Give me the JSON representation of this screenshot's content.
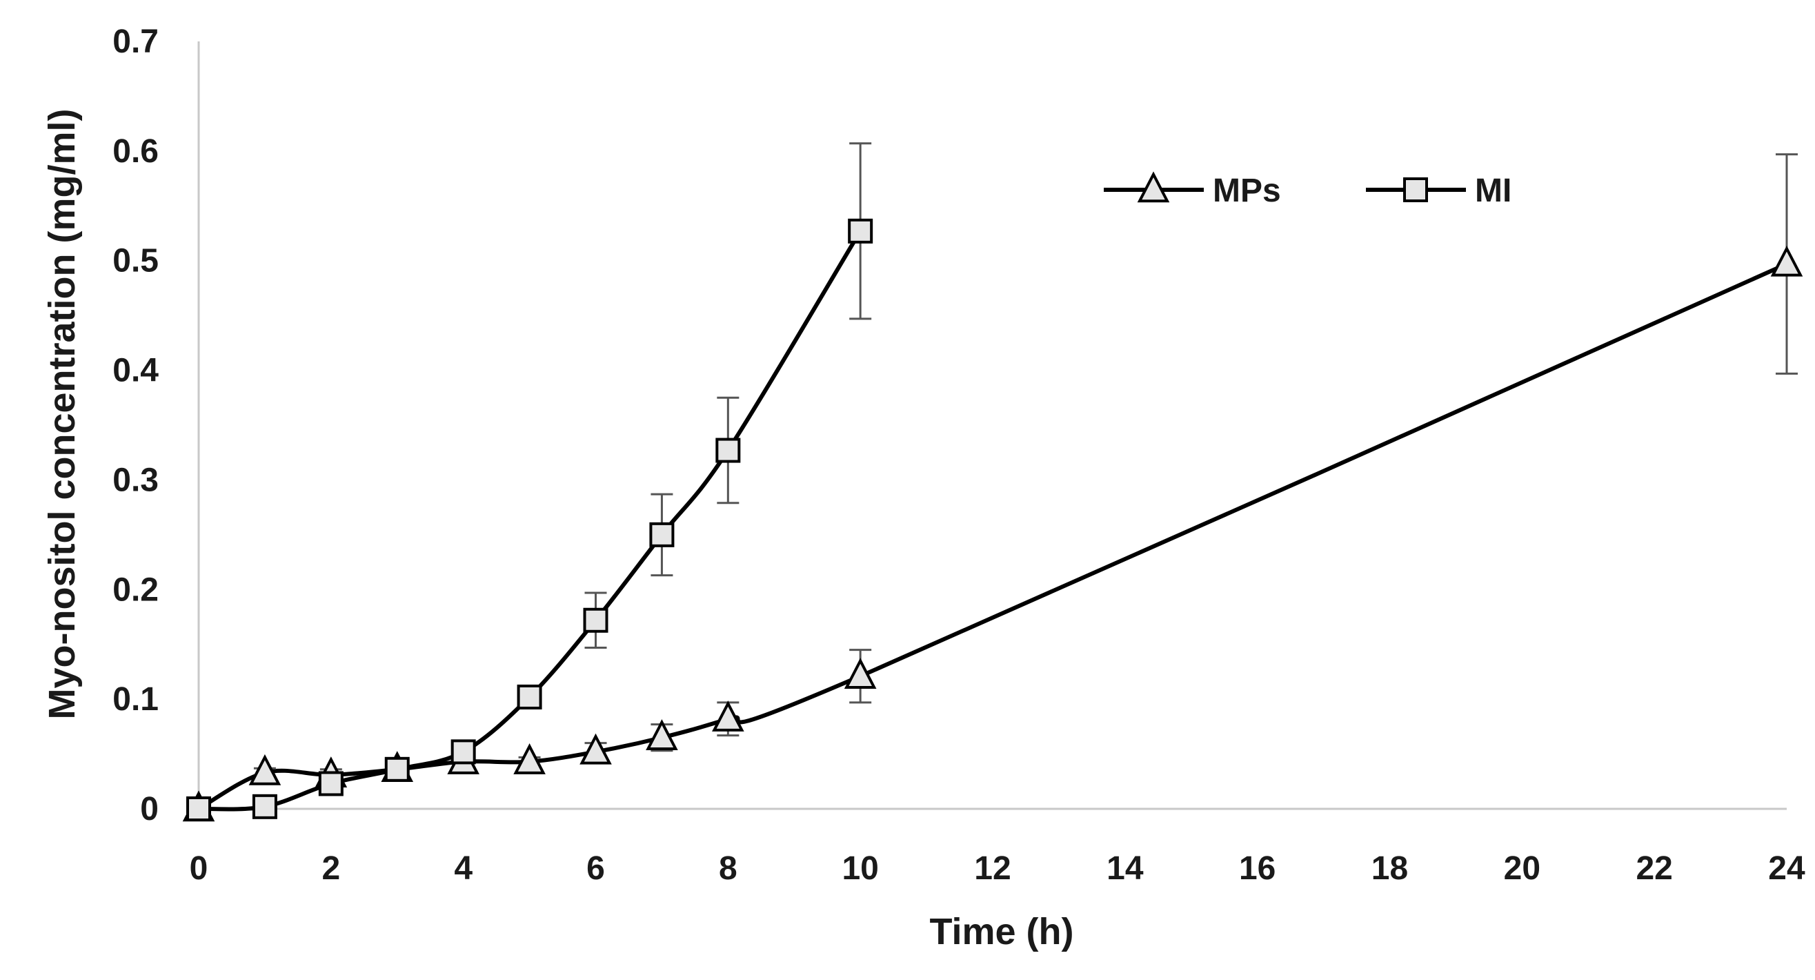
{
  "chart_data": {
    "type": "line",
    "title": "",
    "xlabel": "Time (h)",
    "ylabel": "Myo-nositol concentration (mg/ml)",
    "xlim": [
      0,
      24
    ],
    "ylim": [
      0,
      0.7
    ],
    "x_ticks": [
      0,
      2,
      4,
      6,
      8,
      10,
      12,
      14,
      16,
      18,
      20,
      22,
      24
    ],
    "y_ticks": [
      0,
      0.1,
      0.2,
      0.3,
      0.4,
      0.5,
      0.6,
      0.7
    ],
    "grid": false,
    "legend_position": "top-right",
    "series": [
      {
        "name": "MPs",
        "marker": "triangle",
        "x": [
          0,
          1,
          2,
          3,
          4,
          5,
          6,
          7,
          8,
          10,
          24
        ],
        "y": [
          0,
          0.033,
          0.031,
          0.036,
          0.043,
          0.043,
          0.052,
          0.065,
          0.082,
          0.121,
          0.497
        ],
        "error": [
          0,
          0.004,
          0.005,
          0.004,
          0.005,
          0.004,
          0.008,
          0.012,
          0.015,
          0.024,
          0.1
        ]
      },
      {
        "name": "MI",
        "marker": "square",
        "x": [
          0,
          1,
          2,
          3,
          4,
          5,
          6,
          7,
          8,
          10
        ],
        "y": [
          0,
          0.002,
          0.023,
          0.036,
          0.052,
          0.102,
          0.172,
          0.25,
          0.327,
          0.527
        ],
        "error": [
          0,
          0.002,
          0.005,
          0.004,
          0.006,
          0.01,
          0.025,
          0.037,
          0.048,
          0.08
        ]
      }
    ],
    "colors": {
      "line": "#000000",
      "marker_fill": "#e6e6e6",
      "axis": "#c8c8c8",
      "error_bar": "#555555"
    }
  }
}
